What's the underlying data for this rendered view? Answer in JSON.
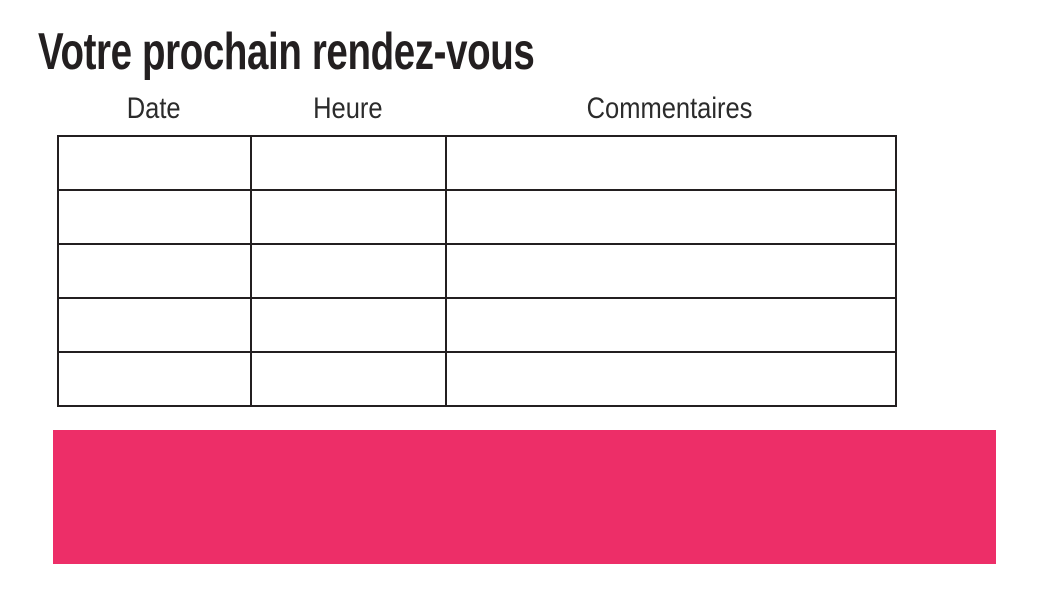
{
  "page": {
    "title": "Votre prochain rendez-vous"
  },
  "table": {
    "headers": [
      "Date",
      "Heure",
      "Commentaires"
    ],
    "row_count": 5,
    "rows": [
      [
        "",
        "",
        ""
      ],
      [
        "",
        "",
        ""
      ],
      [
        "",
        "",
        ""
      ],
      [
        "",
        "",
        ""
      ],
      [
        "",
        "",
        ""
      ]
    ]
  },
  "banner": {
    "text": ""
  },
  "colors": {
    "accent_pink": "#ED2E68",
    "ink": "#231F20"
  }
}
